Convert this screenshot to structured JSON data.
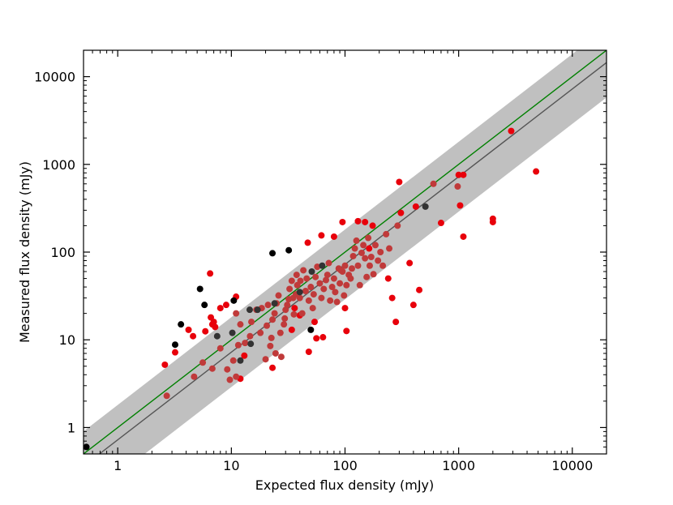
{
  "chart_data": {
    "type": "scatter",
    "title": "",
    "xlabel": "Expected flux density (mJy)",
    "ylabel": "Measured flux density (mJy)",
    "xscale": "log",
    "yscale": "log",
    "xlim": [
      0.5,
      20000
    ],
    "ylim": [
      0.5,
      20000
    ],
    "x_ticks": [
      1,
      10,
      100,
      1000,
      10000
    ],
    "x_tick_labels": [
      "1",
      "10",
      "100",
      "1000",
      "10000"
    ],
    "y_ticks": [
      1,
      10,
      100,
      1000,
      10000
    ],
    "y_tick_labels": [
      "1",
      "10",
      "100",
      "1000",
      "10000"
    ],
    "grid": false,
    "colors": {
      "band": "#c0c0c0",
      "unity_line": "#008000",
      "fit_line": "#555555",
      "red": "#e8000b",
      "darkred": "#c03a3a",
      "black": "#000000",
      "darkgray": "#333333"
    },
    "band": {
      "lower_factor": 0.4,
      "upper_factor": 2.5,
      "fit_slope": 0.7236
    },
    "lines": [
      {
        "name": "unity",
        "slope": 1.0,
        "color_key": "unity_line"
      },
      {
        "name": "fit",
        "slope": 0.7236,
        "color_key": "fit_line"
      }
    ],
    "series": [
      {
        "name": "red",
        "color_key": "red",
        "points": [
          [
            2.6,
            5.2
          ],
          [
            3.2,
            7.2
          ],
          [
            4.2,
            13
          ],
          [
            4.6,
            11
          ],
          [
            5.9,
            12.5
          ],
          [
            6.5,
            57
          ],
          [
            6.6,
            18
          ],
          [
            6.8,
            15
          ],
          [
            7,
            16
          ],
          [
            7.2,
            14
          ],
          [
            8,
            23
          ],
          [
            9,
            25
          ],
          [
            11,
            31
          ],
          [
            12,
            3.6
          ],
          [
            13,
            6.6
          ],
          [
            23,
            4.8
          ],
          [
            34,
            13
          ],
          [
            36,
            23
          ],
          [
            40,
            19
          ],
          [
            47,
            128
          ],
          [
            48,
            7.3
          ],
          [
            54,
            16
          ],
          [
            56,
            10.4
          ],
          [
            62,
            155
          ],
          [
            64,
            10.7
          ],
          [
            80,
            150
          ],
          [
            95,
            220
          ],
          [
            100,
            23
          ],
          [
            103,
            12.6
          ],
          [
            130,
            225
          ],
          [
            150,
            220
          ],
          [
            163,
            110
          ],
          [
            175,
            200
          ],
          [
            240,
            50
          ],
          [
            260,
            30
          ],
          [
            280,
            16
          ],
          [
            300,
            630
          ],
          [
            310,
            280
          ],
          [
            370,
            75
          ],
          [
            400,
            25
          ],
          [
            420,
            330
          ],
          [
            450,
            37
          ],
          [
            700,
            215
          ],
          [
            1000,
            760
          ],
          [
            1030,
            340
          ],
          [
            1100,
            150
          ],
          [
            1100,
            760
          ],
          [
            2000,
            220
          ],
          [
            2000,
            240
          ],
          [
            2900,
            2400
          ],
          [
            4800,
            830
          ]
        ]
      },
      {
        "name": "darkred",
        "color_key": "darkred",
        "points": [
          [
            2.7,
            2.3
          ],
          [
            4.7,
            3.8
          ],
          [
            5.6,
            5.5
          ],
          [
            6.8,
            4.7
          ],
          [
            8,
            8
          ],
          [
            9.2,
            4.6
          ],
          [
            9.7,
            3.5
          ],
          [
            10.4,
            5.8
          ],
          [
            11,
            3.8
          ],
          [
            11,
            20
          ],
          [
            11.5,
            8.7
          ],
          [
            12,
            15
          ],
          [
            13.2,
            9.2
          ],
          [
            14.6,
            11
          ],
          [
            15,
            16
          ],
          [
            16.6,
            22
          ],
          [
            18,
            12
          ],
          [
            18.5,
            23
          ],
          [
            20,
            6
          ],
          [
            20.5,
            14.5
          ],
          [
            21,
            25
          ],
          [
            22,
            8.5
          ],
          [
            22.5,
            10.5
          ],
          [
            23,
            17
          ],
          [
            24,
            20
          ],
          [
            24.5,
            7
          ],
          [
            25,
            26
          ],
          [
            26,
            32
          ],
          [
            27,
            12
          ],
          [
            27.5,
            6.4
          ],
          [
            29,
            15
          ],
          [
            29.5,
            17.5
          ],
          [
            30,
            22
          ],
          [
            31,
            25
          ],
          [
            32,
            29
          ],
          [
            32.5,
            38
          ],
          [
            34,
            47
          ],
          [
            35,
            30
          ],
          [
            35.5,
            19.5
          ],
          [
            37,
            33
          ],
          [
            37.5,
            55
          ],
          [
            38,
            42
          ],
          [
            40,
            30
          ],
          [
            40.5,
            47
          ],
          [
            42,
            20
          ],
          [
            43,
            62
          ],
          [
            45,
            36
          ],
          [
            46,
            50
          ],
          [
            48,
            28
          ],
          [
            50,
            40
          ],
          [
            52,
            23
          ],
          [
            53,
            33
          ],
          [
            55,
            52
          ],
          [
            57,
            68
          ],
          [
            60,
            44
          ],
          [
            62,
            30
          ],
          [
            65,
            38
          ],
          [
            68,
            48
          ],
          [
            70,
            55
          ],
          [
            72,
            75
          ],
          [
            74,
            28
          ],
          [
            77,
            40
          ],
          [
            80,
            50
          ],
          [
            82,
            35
          ],
          [
            85,
            27
          ],
          [
            88,
            65
          ],
          [
            90,
            44
          ],
          [
            92,
            62
          ],
          [
            95,
            60
          ],
          [
            98,
            32
          ],
          [
            100,
            70
          ],
          [
            103,
            42
          ],
          [
            108,
            55
          ],
          [
            112,
            50
          ],
          [
            115,
            65
          ],
          [
            118,
            90
          ],
          [
            122,
            110
          ],
          [
            126,
            135
          ],
          [
            130,
            70
          ],
          [
            135,
            42
          ],
          [
            140,
            98
          ],
          [
            145,
            120
          ],
          [
            150,
            85
          ],
          [
            155,
            52
          ],
          [
            160,
            145
          ],
          [
            165,
            70
          ],
          [
            170,
            88
          ],
          [
            178,
            56
          ],
          [
            185,
            120
          ],
          [
            195,
            80
          ],
          [
            205,
            100
          ],
          [
            215,
            70
          ],
          [
            230,
            160
          ],
          [
            245,
            110
          ],
          [
            290,
            200
          ],
          [
            600,
            600
          ],
          [
            980,
            560
          ]
        ]
      },
      {
        "name": "black",
        "color_key": "black",
        "points": [
          [
            0.53,
            0.6
          ],
          [
            3.2,
            8.8
          ],
          [
            3.6,
            15
          ],
          [
            5.3,
            38
          ],
          [
            5.8,
            25
          ],
          [
            10.5,
            28
          ],
          [
            23,
            97
          ],
          [
            32,
            105
          ],
          [
            50,
            13
          ]
        ]
      },
      {
        "name": "darkgray",
        "color_key": "darkgray",
        "points": [
          [
            7.5,
            11
          ],
          [
            10.2,
            12
          ],
          [
            12,
            5.8
          ],
          [
            14.5,
            22
          ],
          [
            14.8,
            9
          ],
          [
            17,
            22
          ],
          [
            24,
            26
          ],
          [
            40,
            35
          ],
          [
            51,
            60
          ],
          [
            63,
            70
          ],
          [
            510,
            330
          ]
        ]
      }
    ]
  }
}
